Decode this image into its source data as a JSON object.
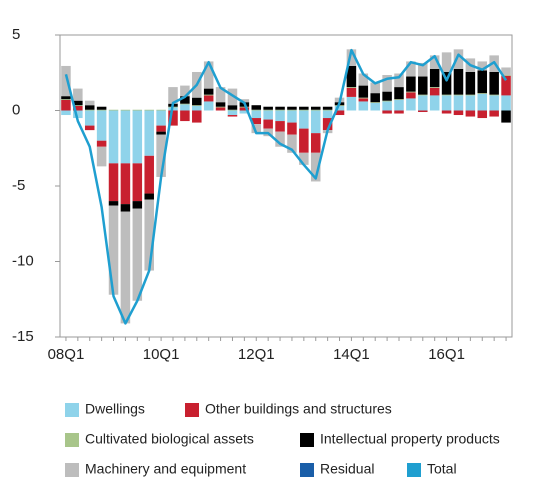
{
  "chart_data": {
    "type": "stacked-bar-line",
    "categories": [
      "08Q1",
      null,
      null,
      null,
      null,
      null,
      null,
      null,
      "10Q1",
      null,
      null,
      null,
      null,
      null,
      null,
      null,
      "12Q1",
      null,
      null,
      null,
      null,
      null,
      null,
      null,
      "14Q1",
      null,
      null,
      null,
      null,
      null,
      null,
      null,
      "16Q1",
      null,
      null,
      null,
      null,
      null
    ],
    "series": [
      {
        "name": "Dwellings",
        "color": "#8fd3ea",
        "values": [
          -0.3,
          -0.5,
          -1.0,
          -2.0,
          -3.5,
          -3.5,
          -3.5,
          -3.0,
          -1.0,
          0.2,
          0.4,
          0.3,
          0.6,
          0.0,
          -0.3,
          -0.2,
          -0.5,
          -0.6,
          -0.7,
          -0.8,
          -1.2,
          -1.5,
          -0.5,
          0.3,
          0.9,
          0.6,
          0.5,
          0.6,
          0.7,
          0.8,
          1.0,
          1.0,
          1.0,
          1.0,
          1.0,
          1.1,
          1.0,
          1.0
        ]
      },
      {
        "name": "Other buildings and structures",
        "color": "#c8202f",
        "values": [
          0.7,
          0.3,
          -0.3,
          -0.4,
          -2.5,
          -2.7,
          -2.5,
          -2.5,
          -0.4,
          -1.0,
          -0.7,
          -0.8,
          0.4,
          0.2,
          -0.1,
          0.2,
          -0.4,
          -0.6,
          -0.7,
          -0.8,
          -1.6,
          -1.3,
          -0.8,
          -0.3,
          0.6,
          0.2,
          0.0,
          -0.2,
          -0.2,
          0.4,
          -0.1,
          0.5,
          -0.2,
          -0.3,
          -0.4,
          -0.5,
          -0.4,
          1.3
        ]
      },
      {
        "name": "Cultivated biological assets",
        "color": "#a8c58a",
        "values": [
          0.05,
          0.05,
          0.05,
          0.05,
          0.05,
          0.05,
          0.05,
          0.05,
          0.05,
          0.05,
          0.05,
          0.05,
          0.05,
          0.05,
          0.05,
          0.05,
          0.05,
          0.05,
          0.05,
          0.05,
          0.05,
          0.05,
          0.05,
          0.05,
          0.05,
          0.05,
          0.05,
          0.05,
          0.05,
          0.05,
          0.05,
          0.05,
          0.05,
          0.05,
          0.05,
          0.05,
          0.05,
          0.05
        ]
      },
      {
        "name": "Intellectual property products",
        "color": "#000000",
        "values": [
          0.2,
          0.3,
          0.3,
          0.2,
          -0.3,
          -0.5,
          -0.5,
          -0.4,
          -0.2,
          0.2,
          0.5,
          0.5,
          0.4,
          0.3,
          0.3,
          0.3,
          0.3,
          0.2,
          0.2,
          0.2,
          0.2,
          0.2,
          0.2,
          0.2,
          1.4,
          0.8,
          0.6,
          0.6,
          0.8,
          1.0,
          1.2,
          1.2,
          1.5,
          1.7,
          1.5,
          1.5,
          1.5,
          -0.8
        ]
      },
      {
        "name": "Machinery and equipment",
        "color": "#bdbdbd",
        "values": [
          2.0,
          0.8,
          0.3,
          -1.3,
          -5.9,
          -7.4,
          -6.1,
          -4.7,
          -2.8,
          1.1,
          0.7,
          1.7,
          1.8,
          1.0,
          1.1,
          0.2,
          -0.6,
          -0.5,
          -1.0,
          -1.2,
          -0.8,
          -1.9,
          -0.2,
          0.3,
          1.1,
          0.8,
          0.7,
          1.1,
          0.9,
          1.0,
          0.9,
          0.9,
          1.3,
          1.3,
          0.9,
          0.6,
          1.1,
          0.5
        ]
      },
      {
        "name": "Residual",
        "color": "#1a5ea8",
        "values": [
          0.0,
          0.0,
          0.0,
          0.0,
          0.0,
          0.0,
          0.0,
          0.0,
          0.0,
          0.0,
          0.0,
          0.0,
          0.0,
          0.0,
          0.0,
          0.0,
          0.0,
          0.0,
          0.0,
          0.0,
          0.0,
          0.0,
          0.0,
          0.0,
          0.0,
          0.0,
          0.0,
          0.0,
          0.0,
          0.0,
          0.0,
          0.0,
          0.0,
          0.0,
          0.0,
          0.0,
          0.0,
          0.0
        ]
      },
      {
        "name": "Total",
        "color": "#1f9fd0",
        "line": true,
        "values": [
          2.4,
          -0.7,
          -2.4,
          -6.4,
          -12.3,
          -14.1,
          -12.6,
          -10.6,
          -4.4,
          0.5,
          0.9,
          1.7,
          3.2,
          1.5,
          1.0,
          0.5,
          -1.5,
          -1.5,
          -2.2,
          -2.6,
          -3.6,
          -4.5,
          -1.3,
          0.5,
          4.0,
          2.4,
          1.8,
          2.1,
          2.2,
          3.2,
          3.0,
          3.6,
          2.0,
          3.7,
          3.0,
          2.7,
          3.2,
          2.0
        ]
      }
    ],
    "ylim": [
      -15,
      5
    ],
    "yticks": [
      5,
      0,
      -5,
      -10,
      -15
    ]
  }
}
